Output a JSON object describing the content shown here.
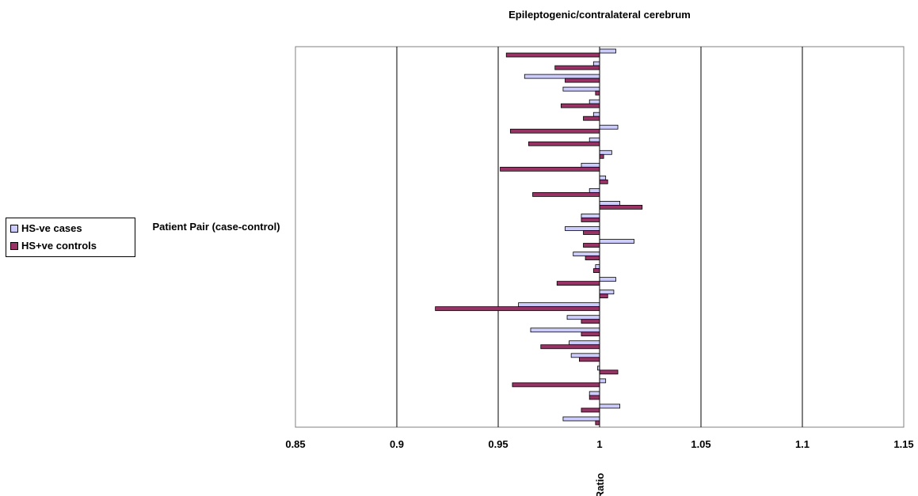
{
  "chart_data": {
    "type": "bar",
    "orientation": "horizontal",
    "title": "Epileptogenic/contralateral cerebrum",
    "ylabel": "Patient Pair (case-control)",
    "xlabel": "Ratio",
    "xlim": [
      0.85,
      1.15
    ],
    "xticks": [
      "0.85",
      "0.9",
      "0.95",
      "1",
      "1.05",
      "1.1",
      "1.15"
    ],
    "xtick_values": [
      0.85,
      0.9,
      0.95,
      1.0,
      1.05,
      1.1,
      1.15
    ],
    "baseline": 1.0,
    "grid": "vertical",
    "legend_position": "left",
    "series": [
      {
        "name": "HS-ve cases",
        "color": "#ccccff",
        "values": [
          1.008,
          0.997,
          0.963,
          0.982,
          0.995,
          0.997,
          1.009,
          0.995,
          1.006,
          0.991,
          1.003,
          0.995,
          1.01,
          0.991,
          0.983,
          1.017,
          0.987,
          0.998,
          1.008,
          1.007,
          0.96,
          0.984,
          0.966,
          0.985,
          0.986,
          0.999,
          1.003,
          0.995,
          1.01,
          0.982
        ]
      },
      {
        "name": "HS+ve controls",
        "color": "#993366",
        "values": [
          0.954,
          0.978,
          0.983,
          0.998,
          0.981,
          0.992,
          0.956,
          0.965,
          1.002,
          0.951,
          1.004,
          0.967,
          1.021,
          0.991,
          0.992,
          0.992,
          0.993,
          0.997,
          0.979,
          1.004,
          0.919,
          0.991,
          0.991,
          0.971,
          0.99,
          1.009,
          0.957,
          0.995,
          0.991,
          0.998
        ]
      }
    ]
  }
}
